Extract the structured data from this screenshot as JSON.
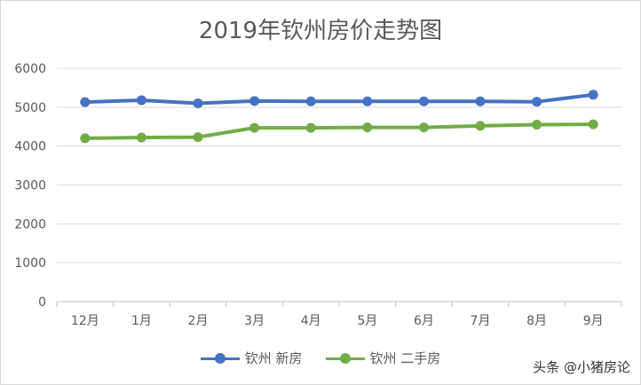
{
  "chart_data": {
    "type": "line",
    "title": "2019年钦州房价走势图",
    "categories": [
      "12月",
      "1月",
      "2月",
      "3月",
      "4月",
      "5月",
      "6月",
      "7月",
      "8月",
      "9月"
    ],
    "ylim": [
      0,
      6000
    ],
    "yticks": [
      0,
      1000,
      2000,
      3000,
      4000,
      5000,
      6000
    ],
    "grid": true,
    "legend_position": "bottom",
    "series": [
      {
        "name": "钦州 新房",
        "color": "#4472c4",
        "values": [
          5130,
          5180,
          5100,
          5160,
          5150,
          5150,
          5150,
          5150,
          5140,
          5320
        ]
      },
      {
        "name": "钦州 二手房",
        "color": "#70ad47",
        "values": [
          4200,
          4220,
          4230,
          4470,
          4470,
          4480,
          4480,
          4520,
          4550,
          4560
        ]
      }
    ]
  },
  "watermark": "头条 @小猪房论"
}
